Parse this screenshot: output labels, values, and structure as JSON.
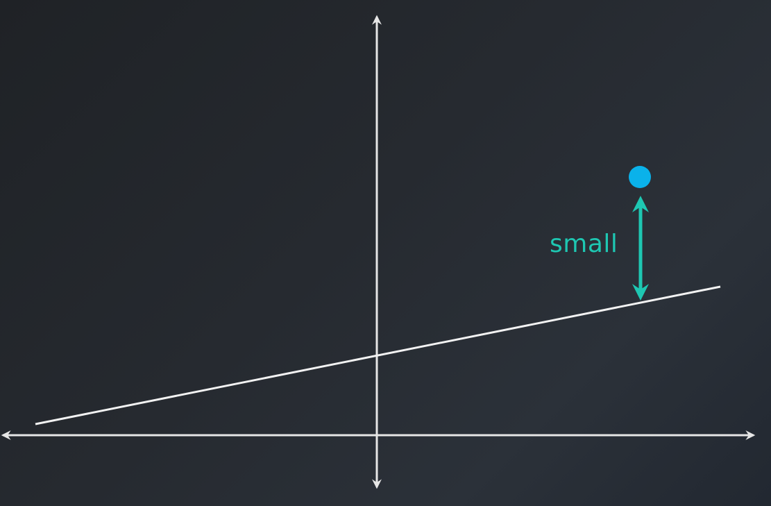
{
  "annotation": {
    "label": "small"
  },
  "colors": {
    "axes": "#e6e6e6",
    "line": "#f2f2f2",
    "point": "#0ab2ea",
    "residual": "#1ec7b2"
  }
}
